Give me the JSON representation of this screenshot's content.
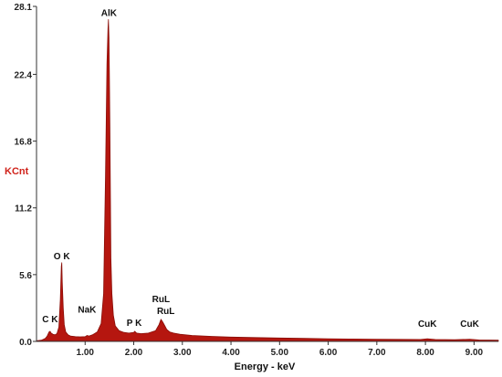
{
  "chart_data": {
    "type": "area",
    "xlabel": "Energy - keV",
    "ylabel": "KCnt",
    "xlim": [
      0,
      9.5
    ],
    "ylim": [
      0,
      28.1
    ],
    "x_ticks": [
      "1.00",
      "2.00",
      "3.00",
      "4.00",
      "5.00",
      "6.00",
      "7.00",
      "8.00",
      "9.00"
    ],
    "y_ticks": [
      "0.0",
      "5.6",
      "11.2",
      "16.8",
      "22.4",
      "28.1"
    ],
    "peak_labels": [
      {
        "text": "C K",
        "x": 0.28,
        "y": 1.3
      },
      {
        "text": "O K",
        "x": 0.52,
        "y": 6.6
      },
      {
        "text": "NaK",
        "x": 1.04,
        "y": 2.1
      },
      {
        "text": "AlK",
        "x": 1.49,
        "y": 27.0
      },
      {
        "text": "P K",
        "x": 2.01,
        "y": 1.0
      },
      {
        "text": "RuL",
        "x": 2.56,
        "y": 3.0
      },
      {
        "text": "RuL",
        "x": 2.66,
        "y": 2.0
      },
      {
        "text": "CuK",
        "x": 8.04,
        "y": 0.9
      },
      {
        "text": "CuK",
        "x": 8.91,
        "y": 0.9
      }
    ],
    "spectrum": {
      "x": [
        0.0,
        0.1,
        0.18,
        0.22,
        0.26,
        0.28,
        0.3,
        0.34,
        0.38,
        0.42,
        0.46,
        0.49,
        0.51,
        0.52,
        0.53,
        0.55,
        0.57,
        0.6,
        0.65,
        0.7,
        0.8,
        0.9,
        1.0,
        1.04,
        1.08,
        1.15,
        1.25,
        1.33,
        1.38,
        1.42,
        1.45,
        1.47,
        1.48,
        1.49,
        1.5,
        1.51,
        1.52,
        1.53,
        1.55,
        1.58,
        1.62,
        1.7,
        1.8,
        1.9,
        2.0,
        2.02,
        2.06,
        2.15,
        2.3,
        2.45,
        2.52,
        2.56,
        2.6,
        2.64,
        2.68,
        2.74,
        2.82,
        2.95,
        3.2,
        3.6,
        4.0,
        4.5,
        5.0,
        5.5,
        6.0,
        6.5,
        7.0,
        7.5,
        7.9,
        8.04,
        8.2,
        8.6,
        8.91,
        9.1,
        9.5
      ],
      "y": [
        0.05,
        0.1,
        0.25,
        0.45,
        0.8,
        0.85,
        0.7,
        0.6,
        0.55,
        0.65,
        1.2,
        3.5,
        6.3,
        6.6,
        5.0,
        2.8,
        1.4,
        0.8,
        0.55,
        0.45,
        0.4,
        0.38,
        0.4,
        0.5,
        0.45,
        0.55,
        0.8,
        1.5,
        4.0,
        14.0,
        23.3,
        26.2,
        27.0,
        25.5,
        22.0,
        18.0,
        12.0,
        7.0,
        4.0,
        2.2,
        1.3,
        0.9,
        0.75,
        0.7,
        0.75,
        0.85,
        0.7,
        0.65,
        0.7,
        0.9,
        1.4,
        1.85,
        1.6,
        1.3,
        1.0,
        0.8,
        0.7,
        0.6,
        0.5,
        0.42,
        0.36,
        0.32,
        0.28,
        0.25,
        0.22,
        0.2,
        0.18,
        0.17,
        0.16,
        0.22,
        0.16,
        0.14,
        0.18,
        0.12,
        0.1
      ]
    },
    "colors": {
      "fill": "#b5160f",
      "stroke": "#8a0e08",
      "ylabel": "#d0231b",
      "axis": "#333333"
    }
  }
}
